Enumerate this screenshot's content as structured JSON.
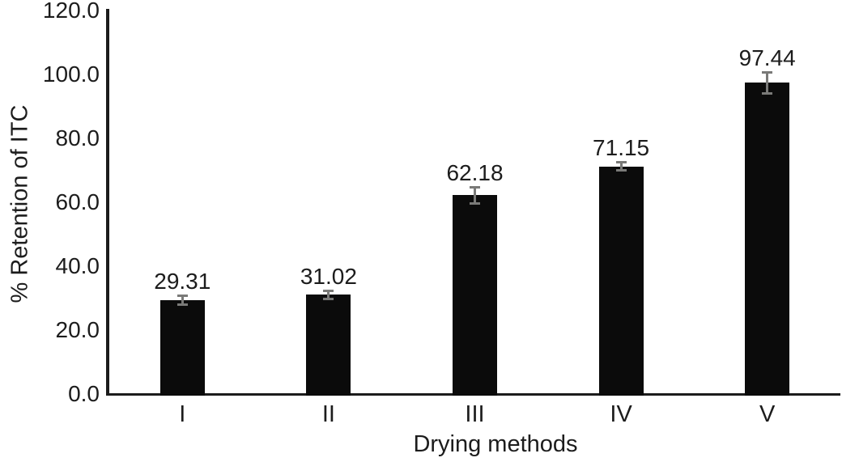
{
  "chart_data": {
    "type": "bar",
    "title": "",
    "xlabel": "Drying methods",
    "ylabel": "% Retention of ITC",
    "categories": [
      "I",
      "II",
      "III",
      "IV",
      "V"
    ],
    "values": [
      29.31,
      31.02,
      62.18,
      71.15,
      97.44
    ],
    "data_labels": [
      "29.31",
      "31.02",
      "62.18",
      "71.15",
      "97.44"
    ],
    "errors": [
      1.5,
      1.5,
      2.6,
      1.4,
      3.4
    ],
    "ylim": [
      0,
      120
    ],
    "yticks": [
      0,
      20,
      40,
      60,
      80,
      100,
      120
    ],
    "ytick_labels": [
      "0.0",
      "20.0",
      "40.0",
      "60.0",
      "80.0",
      "100.0",
      "120.0"
    ],
    "grid": false,
    "legend": "none",
    "bar_color": "#0b0b0b",
    "error_color": "#7a7a78",
    "axis_color": "#1c1c1c",
    "text_color": "#1c1c1c"
  }
}
